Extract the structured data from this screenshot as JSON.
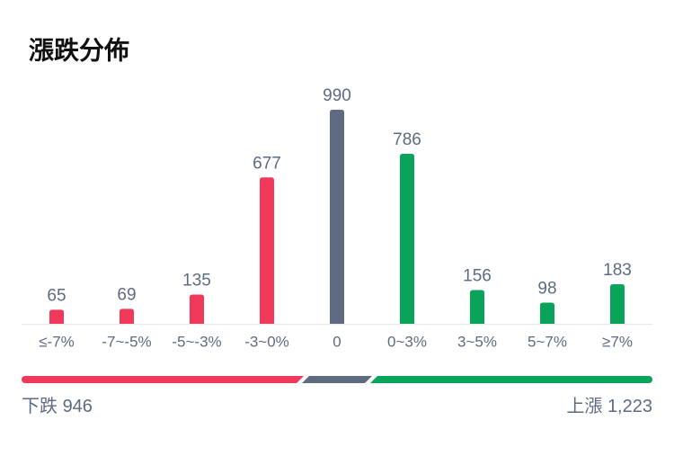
{
  "chart_data": {
    "type": "bar",
    "title": "漲跌分佈",
    "categories": [
      "≤-7%",
      "-7~-5%",
      "-5~-3%",
      "-3~0%",
      "0",
      "0~3%",
      "3~5%",
      "5~7%",
      "≥7%"
    ],
    "values": [
      65,
      69,
      135,
      677,
      990,
      786,
      156,
      98,
      183
    ],
    "colors": [
      "#f0395a",
      "#f0395a",
      "#f0395a",
      "#f0395a",
      "#5f6b80",
      "#0aa35a",
      "#0aa35a",
      "#0aa35a",
      "#0aa35a"
    ],
    "summary": {
      "down": {
        "label": "下跌",
        "value": 946,
        "color": "#f0395a"
      },
      "flat": {
        "color": "#5f6b80"
      },
      "up": {
        "label": "上漲",
        "value": 1223,
        "value_label": "1,223",
        "color": "#0aa35a"
      }
    }
  }
}
